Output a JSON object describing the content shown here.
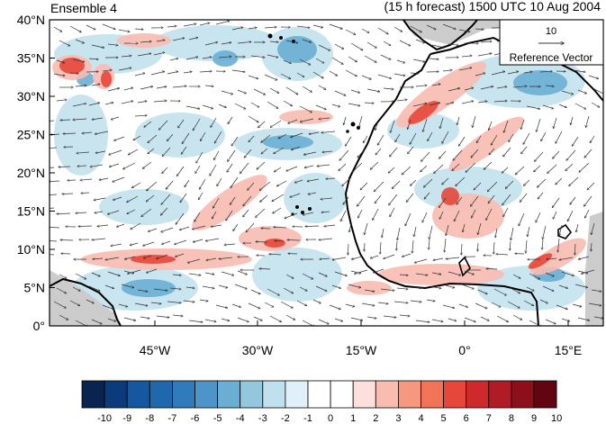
{
  "title_left": "Ensemble 4",
  "title_right": "(15 h forecast) 1500 UTC 10 Aug 2004",
  "reference_vector": {
    "value": "10",
    "label": "Reference Vector"
  },
  "y_axis": {
    "ticks": [
      "40°N",
      "35°N",
      "30°N",
      "25°N",
      "20°N",
      "15°N",
      "10°N",
      "5°N",
      "0°"
    ]
  },
  "x_axis": {
    "ticks": [
      "45°W",
      "30°W",
      "15°W",
      "0°",
      "15°E"
    ]
  },
  "colorbar": {
    "labels": [
      "-10",
      "-9",
      "-8",
      "-7",
      "-6",
      "-5",
      "-4",
      "-3",
      "-2",
      "-1",
      "0",
      "1",
      "2",
      "3",
      "4",
      "5",
      "6",
      "7",
      "8",
      "9",
      "10"
    ],
    "colors": [
      "#08244f",
      "#0b3b7a",
      "#1558a0",
      "#2068ae",
      "#2f7bbb",
      "#4d94c9",
      "#6aaed4",
      "#93c7de",
      "#bfe0ec",
      "#dff0f8",
      "#ffffff",
      "#ffffff",
      "#fde0dc",
      "#f9bcb1",
      "#f6987f",
      "#f27357",
      "#e6473a",
      "#cf2a2b",
      "#b01c25",
      "#8d0f1c",
      "#630510"
    ]
  },
  "colors": {
    "land_border": "#000000",
    "no_data": "#cccccc"
  }
}
